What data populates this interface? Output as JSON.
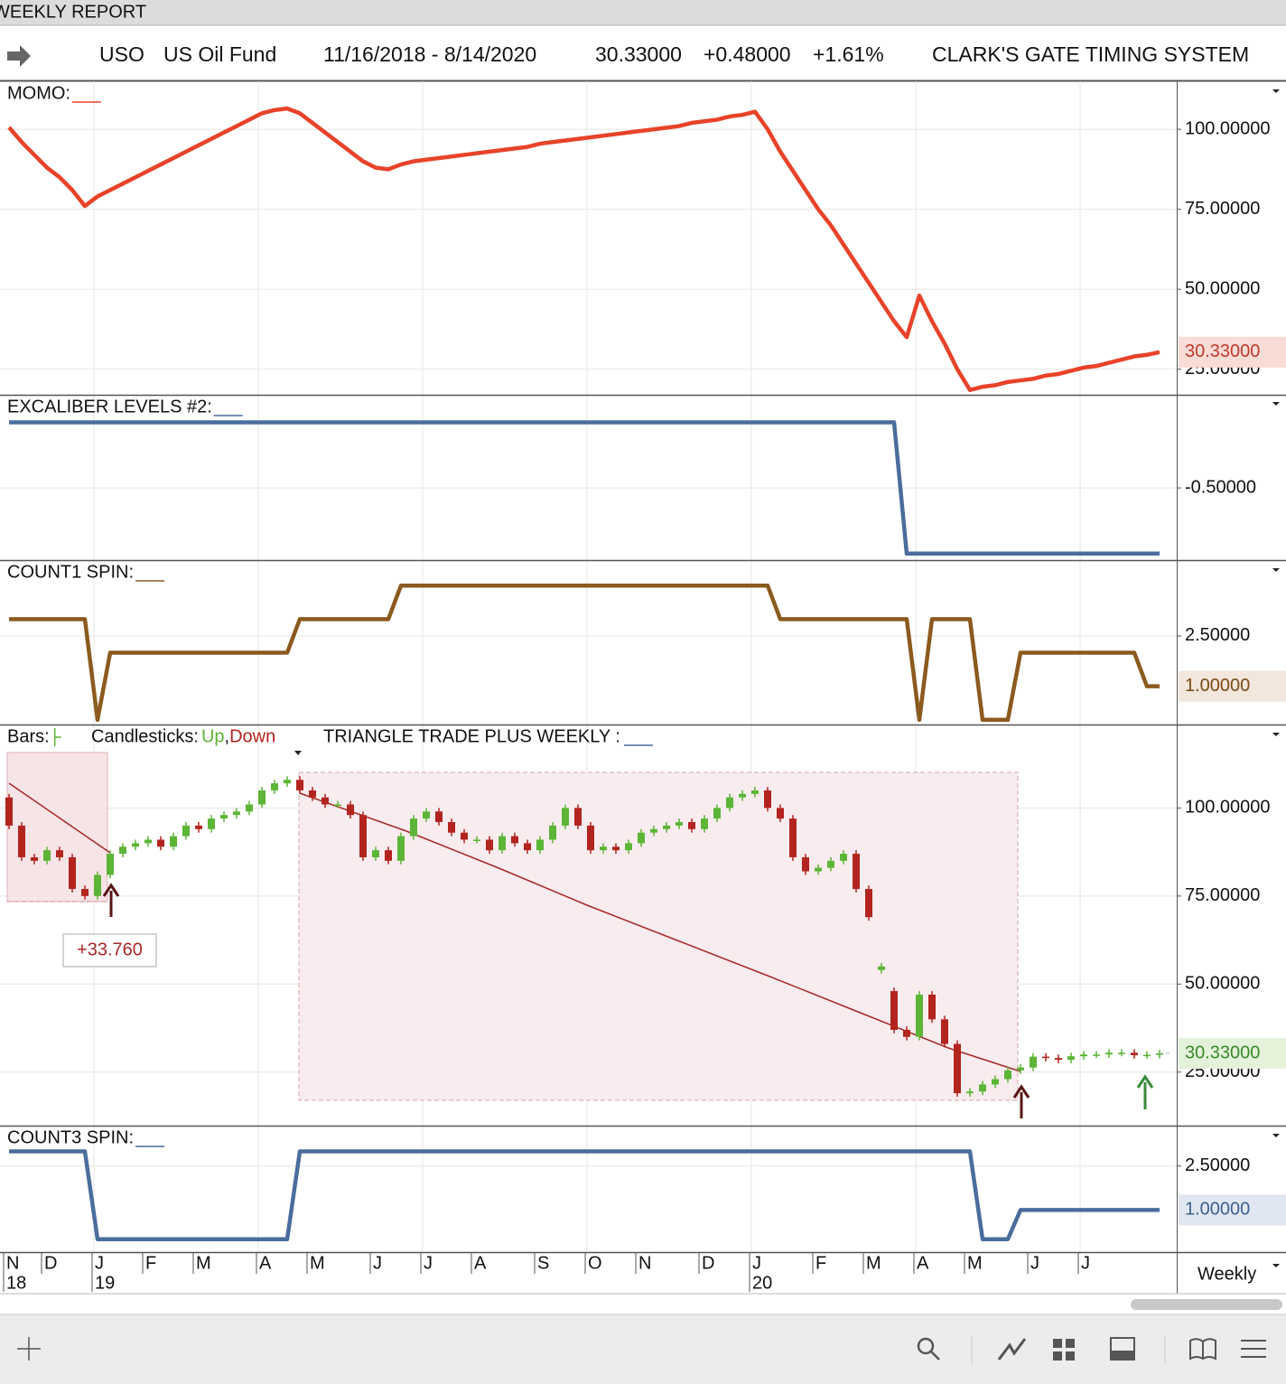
{
  "header": {
    "title": "WEEKLY REPORT",
    "symbol": "USO",
    "name": "US Oil Fund",
    "range": "11/16/2018 - 8/14/2020",
    "last": "30.33000",
    "change": "+0.48000",
    "change_pct": "+1.61%",
    "system": "CLARK'S GATE TIMING SYSTEM"
  },
  "x_axis": {
    "period": "Weekly",
    "months": [
      "N",
      null,
      null,
      "D",
      null,
      null,
      null,
      "J",
      null,
      null,
      null,
      "F",
      null,
      null,
      null,
      "M",
      null,
      null,
      null,
      null,
      "A",
      null,
      null,
      null,
      "M",
      null,
      null,
      null,
      null,
      "J",
      null,
      null,
      null,
      "J",
      null,
      null,
      null,
      "A",
      null,
      null,
      null,
      null,
      "S",
      null,
      null,
      null,
      "O",
      null,
      null,
      null,
      "N",
      null,
      null,
      null,
      null,
      "D",
      null,
      null,
      null,
      "J",
      null,
      null,
      null,
      null,
      "F",
      null,
      null,
      null,
      "M",
      null,
      null,
      null,
      "A",
      null,
      null,
      null,
      "M",
      null,
      null,
      null,
      null,
      "J",
      null,
      null,
      null,
      "J",
      null,
      null,
      null,
      null,
      null,
      null
    ],
    "years": [
      "18",
      null,
      null,
      null,
      null,
      null,
      null,
      "19",
      null,
      null,
      null,
      null,
      null,
      null,
      null,
      null,
      null,
      null,
      null,
      null,
      null,
      null,
      null,
      null,
      null,
      null,
      null,
      null,
      null,
      null,
      null,
      null,
      null,
      null,
      null,
      null,
      null,
      null,
      null,
      null,
      null,
      null,
      null,
      null,
      null,
      null,
      null,
      null,
      null,
      null,
      null,
      null,
      null,
      null,
      null,
      null,
      null,
      null,
      null,
      "20",
      null,
      null,
      null,
      null,
      null,
      null,
      null,
      null,
      null,
      null,
      null,
      null,
      null,
      null,
      null,
      null,
      null,
      null,
      null,
      null,
      null,
      null,
      null,
      null,
      null,
      null,
      null,
      null,
      null,
      null,
      null,
      null
    ]
  },
  "chart_data": [
    {
      "type": "line",
      "title": "MOMO:",
      "ylim": [
        17,
        115
      ],
      "yticks": [
        {
          "value": 25,
          "label": "25.00000"
        },
        {
          "value": 50,
          "label": "50.00000"
        },
        {
          "value": 75,
          "label": "75.00000"
        },
        {
          "value": 100,
          "label": "100.00000"
        }
      ],
      "series": [
        {
          "color": "#e8432a",
          "last_value_label": "30.33000",
          "values": [
            100.6,
            96,
            92,
            88,
            85,
            81,
            76,
            79,
            81,
            83,
            85,
            87,
            89,
            91,
            93,
            95,
            97,
            99,
            101,
            103,
            105,
            106,
            106.5,
            105,
            102,
            99,
            96,
            93,
            90,
            88,
            87.5,
            89,
            90,
            90.5,
            91,
            91.5,
            92,
            92.5,
            93,
            93.5,
            94,
            94.5,
            95.5,
            96,
            96.5,
            97,
            97.5,
            98,
            98.5,
            99,
            99.5,
            100,
            100.5,
            101,
            102,
            102.5,
            103,
            104,
            104.5,
            105.5,
            100,
            93,
            87,
            81,
            75,
            70,
            64,
            58,
            52,
            46,
            40,
            35,
            48,
            40,
            33,
            25,
            18.5,
            19.5,
            20,
            21,
            21.5,
            22,
            23,
            23.5,
            24.5,
            25.5,
            26,
            27,
            28,
            29,
            29.5,
            30.33
          ]
        }
      ]
    },
    {
      "type": "line",
      "title": "EXCALIBER LEVELS #2:",
      "ylim": [
        -1.05,
        0.21
      ],
      "yticks": [
        {
          "value": -0.5,
          "label": "-0.50000"
        }
      ],
      "series": [
        {
          "color": "#4a6d9c",
          "values": [
            0,
            0,
            0,
            0,
            0,
            0,
            0,
            0,
            0,
            0,
            0,
            0,
            0,
            0,
            0,
            0,
            0,
            0,
            0,
            0,
            0,
            0,
            0,
            0,
            0,
            0,
            0,
            0,
            0,
            0,
            0,
            0,
            0,
            0,
            0,
            0,
            0,
            0,
            0,
            0,
            0,
            0,
            0,
            0,
            0,
            0,
            0,
            0,
            0,
            0,
            0,
            0,
            0,
            0,
            0,
            0,
            0,
            0,
            0,
            0,
            0,
            0,
            0,
            0,
            0,
            0,
            0,
            0,
            0,
            0,
            0,
            -1,
            -1,
            -1,
            -1,
            -1,
            -1,
            -1,
            -1,
            -1,
            -1,
            -1,
            -1,
            -1,
            -1,
            -1,
            -1,
            -1,
            -1,
            -1,
            -1,
            -1
          ]
        }
      ]
    },
    {
      "type": "line",
      "title": "COUNT1 SPIN:",
      "ylim": [
        -0.14,
        4.76
      ],
      "yticks": [
        {
          "value": 2.5,
          "label": "2.50000"
        }
      ],
      "series": [
        {
          "color": "#8b5a1e",
          "last_value_label": "1.00000",
          "values": [
            3,
            3,
            3,
            3,
            3,
            3,
            3,
            0,
            2,
            2,
            2,
            2,
            2,
            2,
            2,
            2,
            2,
            2,
            2,
            2,
            2,
            2,
            2,
            3,
            3,
            3,
            3,
            3,
            3,
            3,
            3,
            4,
            4,
            4,
            4,
            4,
            4,
            4,
            4,
            4,
            4,
            4,
            4,
            4,
            4,
            4,
            4,
            4,
            4,
            4,
            4,
            4,
            4,
            4,
            4,
            4,
            4,
            4,
            4,
            4,
            4,
            3,
            3,
            3,
            3,
            3,
            3,
            3,
            3,
            3,
            3,
            3,
            0,
            3,
            3,
            3,
            3,
            0,
            0,
            0,
            2,
            2,
            2,
            2,
            2,
            2,
            2,
            2,
            2,
            2,
            1,
            1
          ]
        }
      ]
    },
    {
      "type": "candlestick",
      "ylim": [
        9.8,
        123.7
      ],
      "legend": {
        "bars": "Bars:",
        "candles": "Candlesticks:",
        "up": "Up",
        "separator": ",",
        "down": "Down",
        "study": "TRIANGLE TRADE PLUS WEEKLY :"
      },
      "annotation": "+33.760",
      "last_value_label": "30.33000",
      "up_color": "#5cb536",
      "down_color": "#b3241e",
      "yticks": [
        {
          "value": 25,
          "label": "25.00000"
        },
        {
          "value": 50,
          "label": "50.00000"
        },
        {
          "value": 75,
          "label": "75.00000"
        },
        {
          "value": 100,
          "label": "100.00000"
        }
      ],
      "open": [
        103,
        95,
        86,
        85,
        88,
        86,
        77,
        75,
        81,
        87,
        89,
        90,
        91,
        89,
        92,
        95,
        94,
        97,
        98,
        99,
        101,
        105,
        107,
        108,
        105,
        103,
        101,
        101,
        98,
        86,
        88,
        85,
        92,
        97,
        99,
        96,
        93,
        91,
        91,
        88,
        92,
        90,
        88,
        91,
        95,
        100,
        95,
        88,
        89,
        88,
        90,
        93,
        94,
        95,
        96,
        94,
        97,
        100,
        103,
        104,
        105,
        100,
        97,
        86,
        82,
        83,
        85,
        87,
        77,
        54,
        48,
        37,
        35,
        47,
        40,
        33,
        19,
        19.5,
        21.5,
        23,
        25.5,
        26.3,
        29.4,
        29,
        28.5,
        29.5,
        30,
        30,
        30.5,
        30.5,
        29.8,
        29.9
      ],
      "high": [
        104,
        96,
        87,
        89,
        89,
        87,
        78,
        82,
        88,
        90,
        91,
        92,
        92,
        93,
        96,
        96,
        98,
        99,
        100,
        102,
        106,
        108,
        109,
        109,
        106,
        104,
        102,
        102,
        99,
        89,
        89,
        93,
        98,
        100,
        100,
        97,
        94,
        92,
        92,
        93,
        93,
        91,
        92,
        96,
        101,
        101,
        96,
        90,
        90,
        91,
        94,
        95,
        96,
        97,
        97,
        98,
        101,
        104,
        105,
        106,
        106,
        101,
        98,
        87,
        84,
        86,
        88,
        88,
        78,
        56,
        49,
        38,
        48,
        48,
        41,
        34,
        20.5,
        22.5,
        24,
        26.5,
        27.3,
        30.4,
        30.4,
        30,
        30.5,
        31,
        31,
        31.5,
        31.5,
        31.5,
        30.9,
        31.33
      ],
      "low": [
        94,
        85,
        84,
        84,
        85,
        76,
        74,
        74,
        80,
        86,
        88,
        89,
        88,
        88,
        91,
        93,
        93,
        96,
        97,
        98,
        100,
        104,
        106,
        104,
        102,
        100,
        100,
        97,
        85,
        85,
        84,
        84,
        91,
        96,
        95,
        92,
        90,
        90,
        87,
        87,
        89,
        87,
        87,
        90,
        94,
        94,
        87,
        87,
        87,
        87,
        89,
        92,
        93,
        94,
        93,
        93,
        96,
        99,
        102,
        103,
        99,
        96,
        85,
        81,
        81,
        82,
        84,
        76,
        68,
        53,
        36,
        34,
        34,
        39,
        32,
        18,
        18,
        18.5,
        20.5,
        22,
        24.5,
        25.3,
        28,
        27.5,
        27.5,
        28.5,
        29,
        29,
        29.5,
        28.8,
        28.8,
        28.9
      ],
      "close": [
        95,
        86,
        85,
        88,
        86,
        77,
        75,
        81,
        87,
        89,
        90,
        91,
        89,
        92,
        95,
        94,
        97,
        98,
        99,
        101,
        105,
        107,
        108,
        105,
        103,
        101,
        101,
        98,
        86,
        88,
        85,
        92,
        97,
        99,
        96,
        93,
        91,
        91,
        88,
        92,
        90,
        88,
        91,
        95,
        100,
        95,
        88,
        89,
        88,
        90,
        93,
        94,
        95,
        96,
        94,
        97,
        100,
        103,
        104,
        105,
        100,
        97,
        86,
        82,
        83,
        85,
        87,
        77,
        69,
        55,
        37,
        35,
        47,
        40,
        33,
        19,
        19.5,
        21.5,
        23,
        25.5,
        26.3,
        29.4,
        29,
        28.5,
        29.5,
        30,
        30,
        30.5,
        30.5,
        29.8,
        29.9,
        30.33
      ]
    },
    {
      "type": "line",
      "title": "COUNT3 SPIN:",
      "ylim": [
        -0.44,
        3.88
      ],
      "yticks": [
        {
          "value": 2.5,
          "label": "2.50000"
        }
      ],
      "series": [
        {
          "color": "#4a6d9c",
          "last_value_label": "1.00000",
          "values": [
            3,
            3,
            3,
            3,
            3,
            3,
            3,
            0,
            0,
            0,
            0,
            0,
            0,
            0,
            0,
            0,
            0,
            0,
            0,
            0,
            0,
            0,
            0,
            3,
            3,
            3,
            3,
            3,
            3,
            3,
            3,
            3,
            3,
            3,
            3,
            3,
            3,
            3,
            3,
            3,
            3,
            3,
            3,
            3,
            3,
            3,
            3,
            3,
            3,
            3,
            3,
            3,
            3,
            3,
            3,
            3,
            3,
            3,
            3,
            3,
            3,
            3,
            3,
            3,
            3,
            3,
            3,
            3,
            3,
            3,
            3,
            3,
            3,
            3,
            3,
            3,
            3,
            0,
            0,
            0,
            1,
            1,
            1,
            1,
            1,
            1,
            1,
            1,
            1,
            1,
            1,
            1
          ]
        }
      ]
    }
  ]
}
